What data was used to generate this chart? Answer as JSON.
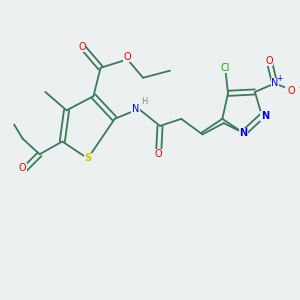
{
  "background_color": "#edf0f0",
  "bond_color": "#3a7a5a",
  "atom_colors": {
    "S": "#c8c800",
    "O": "#ff0000",
    "N": "#0000ee",
    "H": "#888888",
    "Cl": "#00bb00",
    "C": "#3a7a5a"
  },
  "figsize": [
    3.0,
    3.0
  ],
  "dpi": 100
}
